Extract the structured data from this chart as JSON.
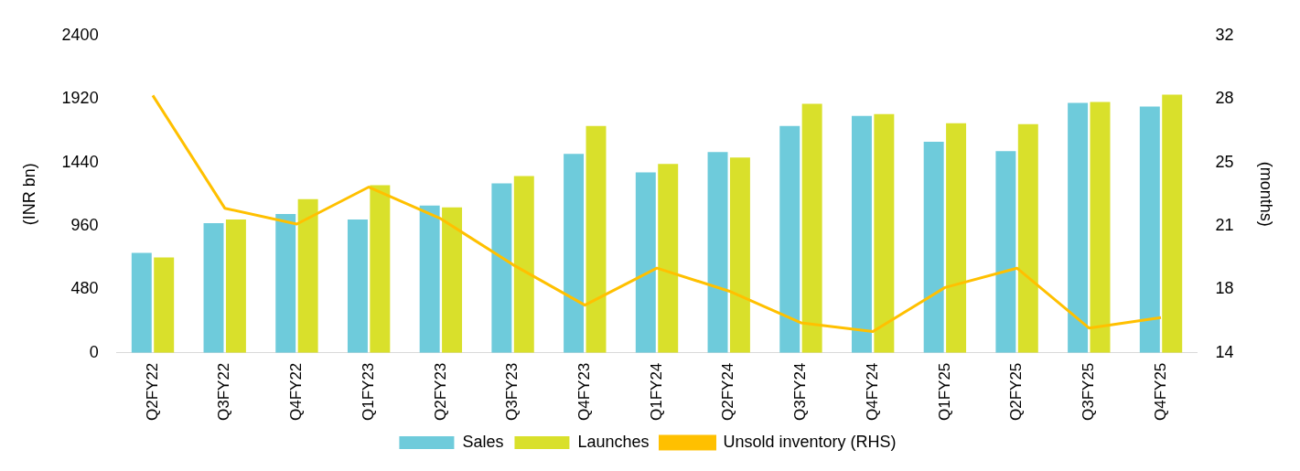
{
  "chart_data": {
    "type": "bar",
    "ylabel": "(INR bn)",
    "y2label": "(months)",
    "categories": [
      "Q2FY22",
      "Q3FY22",
      "Q4FY22",
      "Q1FY23",
      "Q2FY23",
      "Q3FY23",
      "Q4FY23",
      "Q1FY24",
      "Q2FY24",
      "Q3FY24",
      "Q4FY24",
      "Q1FY25",
      "Q2FY25",
      "Q3FY25",
      "Q4FY25"
    ],
    "series": [
      {
        "name": "Sales",
        "color": "#6ecbdb",
        "values": [
          756,
          980,
          1050,
          1008,
          1113,
          1281,
          1505,
          1365,
          1519,
          1715,
          1792,
          1596,
          1526,
          1890,
          1862
        ]
      },
      {
        "name": "Launches",
        "color": "#d9e02b",
        "values": [
          721,
          1008,
          1162,
          1267,
          1099,
          1337,
          1715,
          1428,
          1477,
          1883,
          1806,
          1736,
          1729,
          1897,
          1953
        ]
      },
      {
        "name": "Unsold inventory (RHS)",
        "type": "line",
        "axis": "y2",
        "color": "#ffc000",
        "values": [
          28.6,
          22.2,
          21.3,
          23.4,
          21.6,
          19.0,
          16.7,
          18.8,
          17.5,
          15.7,
          15.2,
          17.7,
          18.8,
          15.4,
          16.0
        ]
      }
    ],
    "ylim": [
      0,
      2400
    ],
    "yticks": [
      0,
      480,
      960,
      1440,
      1920,
      2400
    ],
    "y2lim": [
      14,
      32
    ],
    "y2ticks": [
      14,
      {
        "value": 17.6,
        "label": "18"
      },
      {
        "value": 21.2,
        "label": "21"
      },
      {
        "value": 24.8,
        "label": "25"
      },
      {
        "value": 28.4,
        "label": "28"
      },
      32
    ],
    "grid": false,
    "legend": "bottom",
    "marker": "none"
  }
}
